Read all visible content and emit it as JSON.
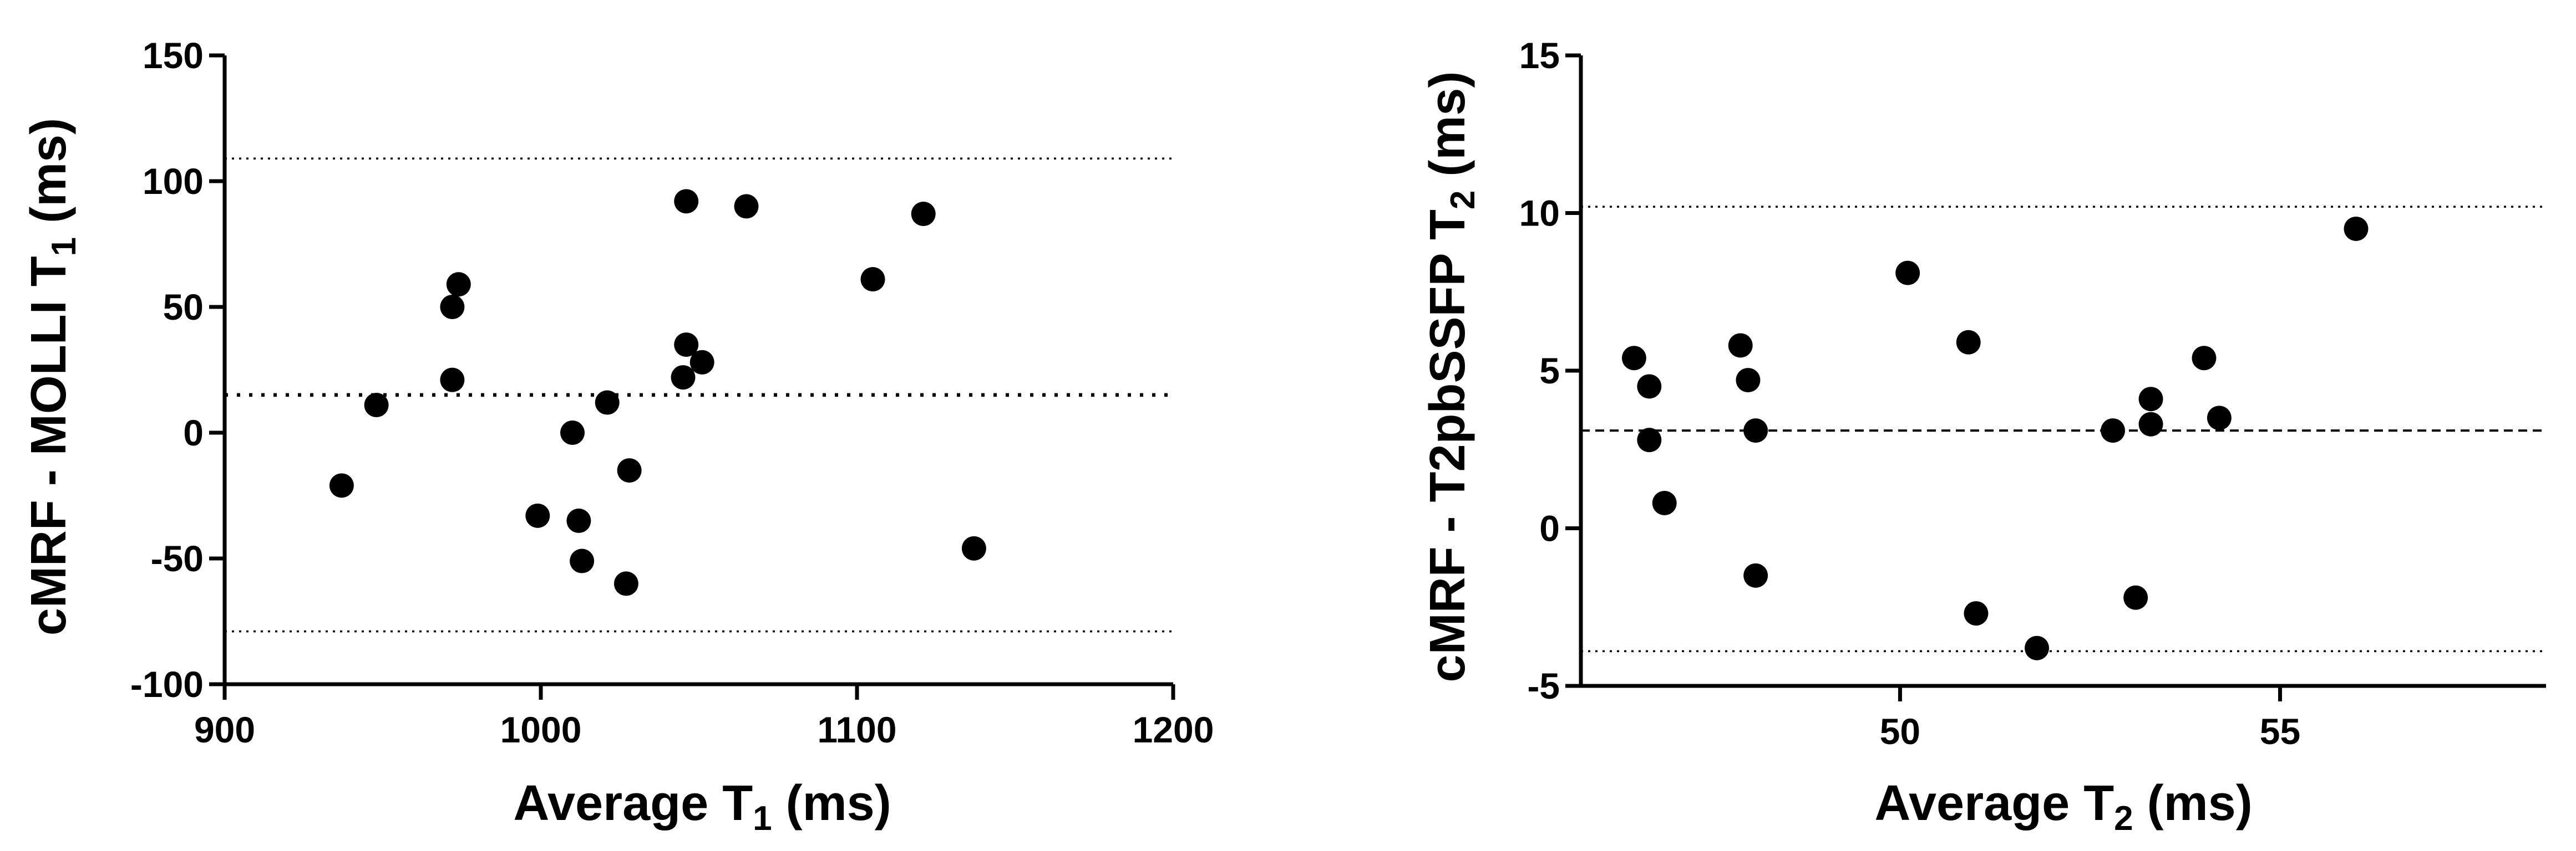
{
  "chart_data": [
    {
      "type": "scatter",
      "title": "",
      "xlabel": "Average T",
      "xlabel_subscript": "1",
      "xlabel_unit": " (ms)",
      "ylabel": "cMRF - MOLLI T",
      "ylabel_subscript": "1",
      "ylabel_unit": " (ms)",
      "xlim": [
        900,
        1200
      ],
      "ylim": [
        -100,
        150
      ],
      "x_ticks": [
        900,
        1000,
        1100,
        1200
      ],
      "x_tick_labels": [
        "900",
        "1000",
        "1100",
        "1200"
      ],
      "y_ticks": [
        -100,
        -50,
        0,
        50,
        100,
        150
      ],
      "y_tick_labels": [
        "-100",
        "-50",
        "0",
        "50",
        "100",
        "150"
      ],
      "grid": false,
      "legend": "none",
      "mean_line": {
        "value": 15,
        "style": "dotted"
      },
      "limits_of_agreement": [
        109,
        -79
      ],
      "points": [
        {
          "x": 937,
          "y": -21
        },
        {
          "x": 948,
          "y": 11
        },
        {
          "x": 972,
          "y": 21
        },
        {
          "x": 972,
          "y": 50
        },
        {
          "x": 974,
          "y": 59
        },
        {
          "x": 999,
          "y": -33
        },
        {
          "x": 1010,
          "y": 0
        },
        {
          "x": 1012,
          "y": -35
        },
        {
          "x": 1013,
          "y": -51
        },
        {
          "x": 1021,
          "y": 12
        },
        {
          "x": 1027,
          "y": -60
        },
        {
          "x": 1028,
          "y": -15
        },
        {
          "x": 1045,
          "y": 22
        },
        {
          "x": 1046,
          "y": 35
        },
        {
          "x": 1046,
          "y": 92
        },
        {
          "x": 1051,
          "y": 28
        },
        {
          "x": 1065,
          "y": 90
        },
        {
          "x": 1105,
          "y": 61
        },
        {
          "x": 1121,
          "y": 87
        },
        {
          "x": 1137,
          "y": -46
        }
      ]
    },
    {
      "type": "scatter",
      "title": "",
      "xlabel": "Average T",
      "xlabel_subscript": "2",
      "xlabel_unit": " (ms)",
      "ylabel": "cMRF - T2pbSSFP T",
      "ylabel_subscript": "2",
      "ylabel_unit": " (ms)",
      "xlim": [
        45.8,
        58.5
      ],
      "ylim": [
        -5,
        15
      ],
      "x_ticks": [
        50,
        55
      ],
      "x_tick_labels": [
        "50",
        "55"
      ],
      "y_ticks": [
        -5,
        0,
        5,
        10,
        15
      ],
      "y_tick_labels": [
        "-5",
        "0",
        "5",
        "10",
        "15"
      ],
      "grid": false,
      "legend": "none",
      "mean_line": {
        "value": 3.1,
        "style": "dashed"
      },
      "limits_of_agreement": [
        10.2,
        -3.9
      ],
      "points": [
        {
          "x": 46.5,
          "y": 5.4
        },
        {
          "x": 46.7,
          "y": 4.5
        },
        {
          "x": 46.7,
          "y": 2.8
        },
        {
          "x": 46.9,
          "y": 0.8
        },
        {
          "x": 47.9,
          "y": 5.8
        },
        {
          "x": 48.0,
          "y": 4.7
        },
        {
          "x": 48.1,
          "y": 3.1
        },
        {
          "x": 48.1,
          "y": -1.5
        },
        {
          "x": 50.1,
          "y": 8.1
        },
        {
          "x": 50.9,
          "y": 5.9
        },
        {
          "x": 51.0,
          "y": -2.7
        },
        {
          "x": 51.8,
          "y": -3.8
        },
        {
          "x": 52.8,
          "y": 3.1
        },
        {
          "x": 53.1,
          "y": -2.2
        },
        {
          "x": 53.3,
          "y": 4.1
        },
        {
          "x": 53.3,
          "y": 3.3
        },
        {
          "x": 54.0,
          "y": 5.4
        },
        {
          "x": 54.2,
          "y": 3.5
        },
        {
          "x": 56.0,
          "y": 9.5
        }
      ]
    }
  ]
}
